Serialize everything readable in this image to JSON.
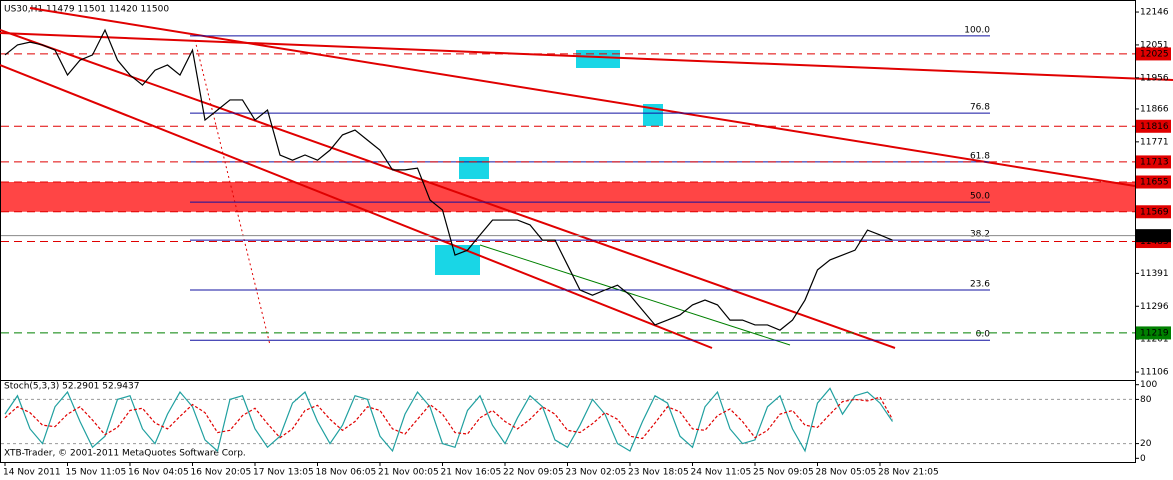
{
  "chart_data": [
    {
      "type": "line",
      "title": "US30,H1  11479 11501 11420 11500",
      "watermark": "XTB-Trader, © 2001-2011 MetaQuotes Software Corp.",
      "categories": [
        "14 Nov 2011",
        null,
        null,
        null,
        null,
        "15 Nov 11:05",
        null,
        null,
        null,
        null,
        "16 Nov 04:05",
        null,
        null,
        null,
        null,
        "16 Nov 20:05",
        null,
        null,
        null,
        null,
        "17 Nov 13:05",
        null,
        null,
        null,
        null,
        "18 Nov 06:05",
        null,
        null,
        null,
        null,
        "21 Nov 00:05",
        null,
        null,
        null,
        null,
        "21 Nov 16:05",
        null,
        null,
        null,
        null,
        "22 Nov 09:05",
        null,
        null,
        null,
        null,
        "23 Nov 02:05",
        null,
        null,
        null,
        null,
        "23 Nov 18:05",
        null,
        null,
        null,
        null,
        "24 Nov 11:05",
        null,
        null,
        null,
        null,
        "25 Nov 09:05",
        null,
        null,
        null,
        null,
        "28 Nov 05:05",
        null,
        null,
        null,
        null,
        "28 Nov 21:05",
        null
      ],
      "series": [
        {
          "color": "#000000",
          "values": [
            12022,
            12051,
            12059,
            12051,
            12036,
            11964,
            12007,
            12022,
            12094,
            12007,
            11964,
            11935,
            11978,
            11993,
            11964,
            12036,
            11834,
            11863,
            11892,
            11892,
            11834,
            11863,
            11733,
            11718,
            11733,
            11718,
            11747,
            11791,
            11805,
            11776,
            11747,
            11690,
            11690,
            11695,
            11603,
            11574,
            11444,
            11458,
            11502,
            11545,
            11545,
            11545,
            11531,
            11487,
            11487,
            11415,
            11343,
            11328,
            11343,
            11357,
            11328,
            11285,
            11242,
            11256,
            11271,
            11300,
            11314,
            11300,
            11256,
            11256,
            11242,
            11242,
            11227,
            11256,
            11314,
            11401,
            11430,
            11444,
            11458,
            11516,
            11502,
            11487
          ]
        }
      ],
      "ylim": [
        11083,
        12175
      ],
      "yticks": [
        12146,
        12051,
        11956,
        11866,
        11771,
        11391,
        11296,
        11201,
        11106
      ],
      "levels": [
        {
          "value": 12025,
          "color": "#e00000",
          "dashed": true
        },
        {
          "value": 11816,
          "color": "#e00000",
          "dashed": true
        },
        {
          "value": 11713,
          "color": "#e00000",
          "dashed": true
        },
        {
          "value": 11655,
          "color": "#e00000",
          "dashed": true
        },
        {
          "value": 11569,
          "color": "#e00000",
          "dashed": true
        },
        {
          "value": 11483,
          "color": "#e00000",
          "dashed": true
        },
        {
          "value": 11500,
          "color": "#000000",
          "dashed": false
        },
        {
          "value": 11219,
          "color": "#008000",
          "dashed": true
        }
      ],
      "zone": {
        "from": 11569,
        "to": 11655,
        "color": "#ff3b3b"
      },
      "fib_color": "#1010a0",
      "fib_levels": [
        {
          "ratio": {
            "value": 100,
            "label": "100.0"
          },
          "price": 12077
        },
        {
          "ratio": 76.8,
          "price": 11854
        },
        {
          "ratio": 61.8,
          "price": 11713
        },
        {
          "ratio": {
            "value": 50,
            "label": "50.0"
          },
          "price": 11597
        },
        {
          "ratio": 38.2,
          "price": 11487
        },
        {
          "ratio": 23.6,
          "price": 11343
        },
        {
          "ratio": {
            "value": 0,
            "label": "0.0"
          },
          "price": 11198
        }
      ]
    },
    {
      "type": "line",
      "title": "Stoch(5,3,3) 52.2901 52.9437",
      "series": [
        {
          "color": "#20a0a0",
          "dashed": false,
          "values": [
            60,
            85,
            40,
            20,
            70,
            90,
            50,
            15,
            30,
            80,
            85,
            40,
            20,
            60,
            90,
            70,
            25,
            10,
            80,
            85,
            40,
            15,
            30,
            75,
            90,
            50,
            20,
            45,
            85,
            80,
            30,
            10,
            60,
            90,
            70,
            20,
            15,
            65,
            85,
            45,
            20,
            55,
            85,
            70,
            25,
            15,
            45,
            80,
            60,
            20,
            10,
            50,
            85,
            75,
            30,
            15,
            70,
            90,
            40,
            20,
            25,
            70,
            85,
            40,
            10,
            75,
            95,
            60,
            85,
            90,
            75,
            50
          ]
        },
        {
          "color": "#e00000",
          "dashed": true,
          "values": [
            55,
            70,
            62,
            45,
            43,
            60,
            70,
            52,
            32,
            42,
            65,
            68,
            48,
            40,
            57,
            73,
            62,
            35,
            38,
            58,
            68,
            47,
            28,
            40,
            65,
            72,
            53,
            38,
            50,
            70,
            65,
            40,
            33,
            53,
            73,
            60,
            35,
            33,
            55,
            65,
            50,
            40,
            53,
            70,
            60,
            38,
            35,
            47,
            62,
            53,
            30,
            27,
            48,
            70,
            63,
            40,
            38,
            58,
            67,
            50,
            28,
            38,
            60,
            65,
            45,
            42,
            60,
            77,
            80,
            78,
            83,
            53
          ]
        }
      ],
      "ylim": [
        -5,
        105
      ],
      "yticks": [
        100,
        80,
        20,
        0
      ]
    }
  ]
}
